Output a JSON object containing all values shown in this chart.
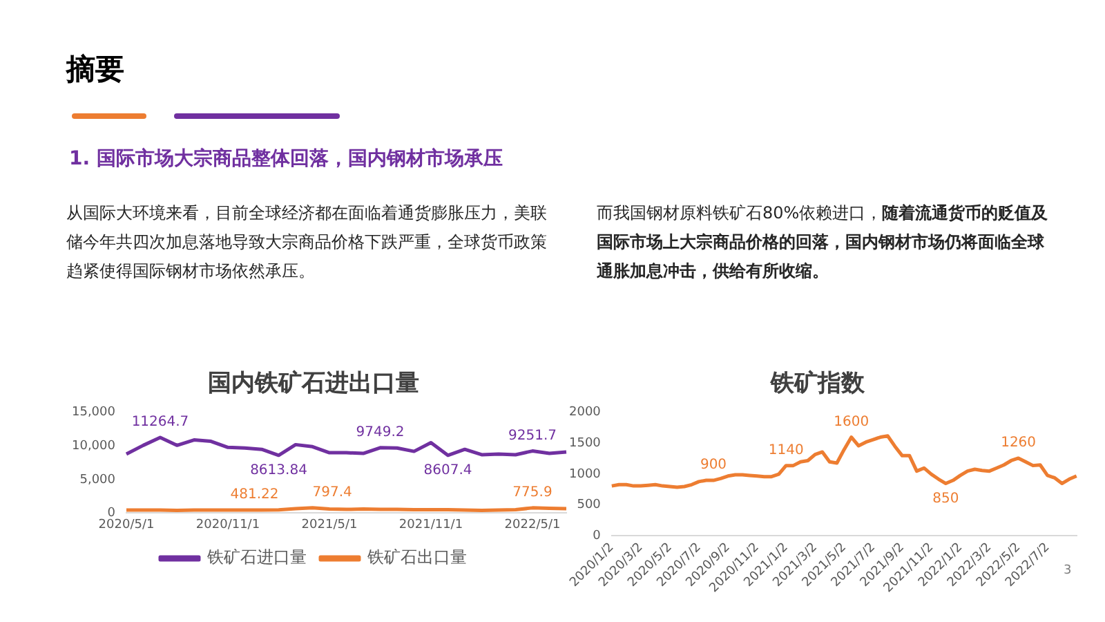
{
  "chart_data": [
    {
      "type": "other",
      "title": "摘要",
      "subtitle": "1. 国际市场大宗商品整体回落，国内钢材市场承压",
      "annotations": [
        "从国际大环境来看，目前全球经济都在面临着通货膨胀压力，美联储今年共四次加息落地导致大宗商品价格下跌严重，全球货币政策趋紧使得国际钢材市场依然承压。",
        "而我国钢材原料铁矿石80%依赖进口，",
        "随着流通货币的贬值及国际市场上大宗商品价格的回落，国内钢材市场仍将面临全球通胀加息冲击，供给有所收缩。",
        "3"
      ]
    },
    {
      "type": "line",
      "title": "国内铁矿石进出口量",
      "categories": [
        "2020/5/1",
        null,
        null,
        null,
        null,
        null,
        "2020/11/1",
        null,
        null,
        null,
        null,
        null,
        "2021/5/1",
        null,
        null,
        null,
        null,
        null,
        "2021/11/1",
        null,
        null,
        null,
        null,
        null,
        "2022/5/1",
        null,
        null
      ],
      "ylim": [
        0,
        15000
      ],
      "yticks": [
        0,
        {
          "value": 5000,
          "label": "5,000"
        },
        {
          "value": 10000,
          "label": "10,000"
        },
        {
          "value": 15000,
          "label": "15,000"
        }
      ],
      "grid": false,
      "legend": "bottom",
      "marker": "none",
      "series": [
        {
          "name": "铁矿石进口量",
          "color": "#7030a0",
          "values": [
            8800,
            10100,
            11264.7,
            10100,
            10900,
            10700,
            9800,
            9700,
            9500,
            8613.84,
            10200,
            9900,
            9000,
            9000,
            8900,
            9749.2,
            9700,
            9200,
            10500,
            8607.4,
            9500,
            8700,
            8800,
            8700,
            9251.7,
            8900,
            9100
          ],
          "value_labels": [
            null,
            null,
            "11264.7",
            null,
            null,
            null,
            null,
            null,
            null,
            "8613.84",
            null,
            null,
            null,
            null,
            null,
            "9749.2",
            null,
            null,
            null,
            "8607.4",
            null,
            null,
            null,
            null,
            "9251.7",
            null,
            null
          ]
        },
        {
          "name": "铁矿石出口量",
          "color": "#ed7d31",
          "values": [
            450,
            450,
            450,
            400,
            450,
            450,
            450,
            450,
            450,
            481.22,
            650,
            797.4,
            600,
            550,
            600,
            550,
            550,
            500,
            500,
            500,
            450,
            400,
            450,
            500,
            775.9,
            700,
            650
          ],
          "value_labels": [
            null,
            null,
            null,
            null,
            null,
            null,
            null,
            null,
            null,
            "481.22",
            null,
            "797.4",
            null,
            null,
            null,
            null,
            null,
            null,
            null,
            null,
            null,
            null,
            null,
            null,
            "775.9",
            null,
            null
          ]
        }
      ]
    },
    {
      "type": "line",
      "title": "铁矿指数",
      "categories": [
        "2020/1/2",
        null,
        null,
        null,
        "2020/3/2",
        null,
        null,
        null,
        "2020/5/2",
        null,
        null,
        null,
        "2020/7/2",
        null,
        null,
        null,
        "2020/9/2",
        null,
        null,
        null,
        "2020/11/2",
        null,
        null,
        null,
        "2021/1/2",
        null,
        null,
        null,
        "2021/3/2",
        null,
        null,
        null,
        "2021/5/2",
        null,
        null,
        null,
        "2021/7/2",
        null,
        null,
        null,
        "2021/9/2",
        null,
        null,
        null,
        "2021/11/2",
        null,
        null,
        null,
        "2022/1/2",
        null,
        null,
        null,
        "2022/3/2",
        null,
        null,
        null,
        "2022/5/2",
        null,
        null,
        null,
        "2022/7/2",
        null,
        null,
        null,
        null
      ],
      "ylim": [
        0,
        2000
      ],
      "yticks": [
        0,
        500,
        1000,
        1500,
        2000
      ],
      "grid": false,
      "legend": false,
      "marker": "none",
      "series": [
        {
          "color": "#ed7d31",
          "values": [
            810,
            830,
            830,
            810,
            810,
            820,
            830,
            810,
            800,
            790,
            800,
            830,
            880,
            900,
            900,
            930,
            970,
            990,
            990,
            980,
            970,
            960,
            960,
            1000,
            1140,
            1140,
            1200,
            1220,
            1320,
            1360,
            1200,
            1180,
            1400,
            1600,
            1460,
            1520,
            1560,
            1600,
            1620,
            1450,
            1300,
            1300,
            1050,
            1100,
            1000,
            920,
            850,
            900,
            980,
            1050,
            1080,
            1060,
            1050,
            1100,
            1150,
            1220,
            1260,
            1200,
            1140,
            1150,
            980,
            940,
            850,
            920,
            970
          ],
          "value_labels": [
            null,
            null,
            null,
            null,
            null,
            null,
            null,
            null,
            null,
            null,
            null,
            null,
            null,
            null,
            "900",
            null,
            null,
            null,
            null,
            null,
            null,
            null,
            null,
            null,
            "1140",
            null,
            null,
            null,
            null,
            null,
            null,
            null,
            null,
            "1600",
            null,
            null,
            null,
            null,
            null,
            null,
            null,
            null,
            null,
            null,
            null,
            null,
            "850",
            null,
            null,
            null,
            null,
            null,
            null,
            null,
            null,
            null,
            "1260",
            null,
            null,
            null,
            null,
            null,
            null,
            null,
            null
          ]
        }
      ]
    }
  ]
}
